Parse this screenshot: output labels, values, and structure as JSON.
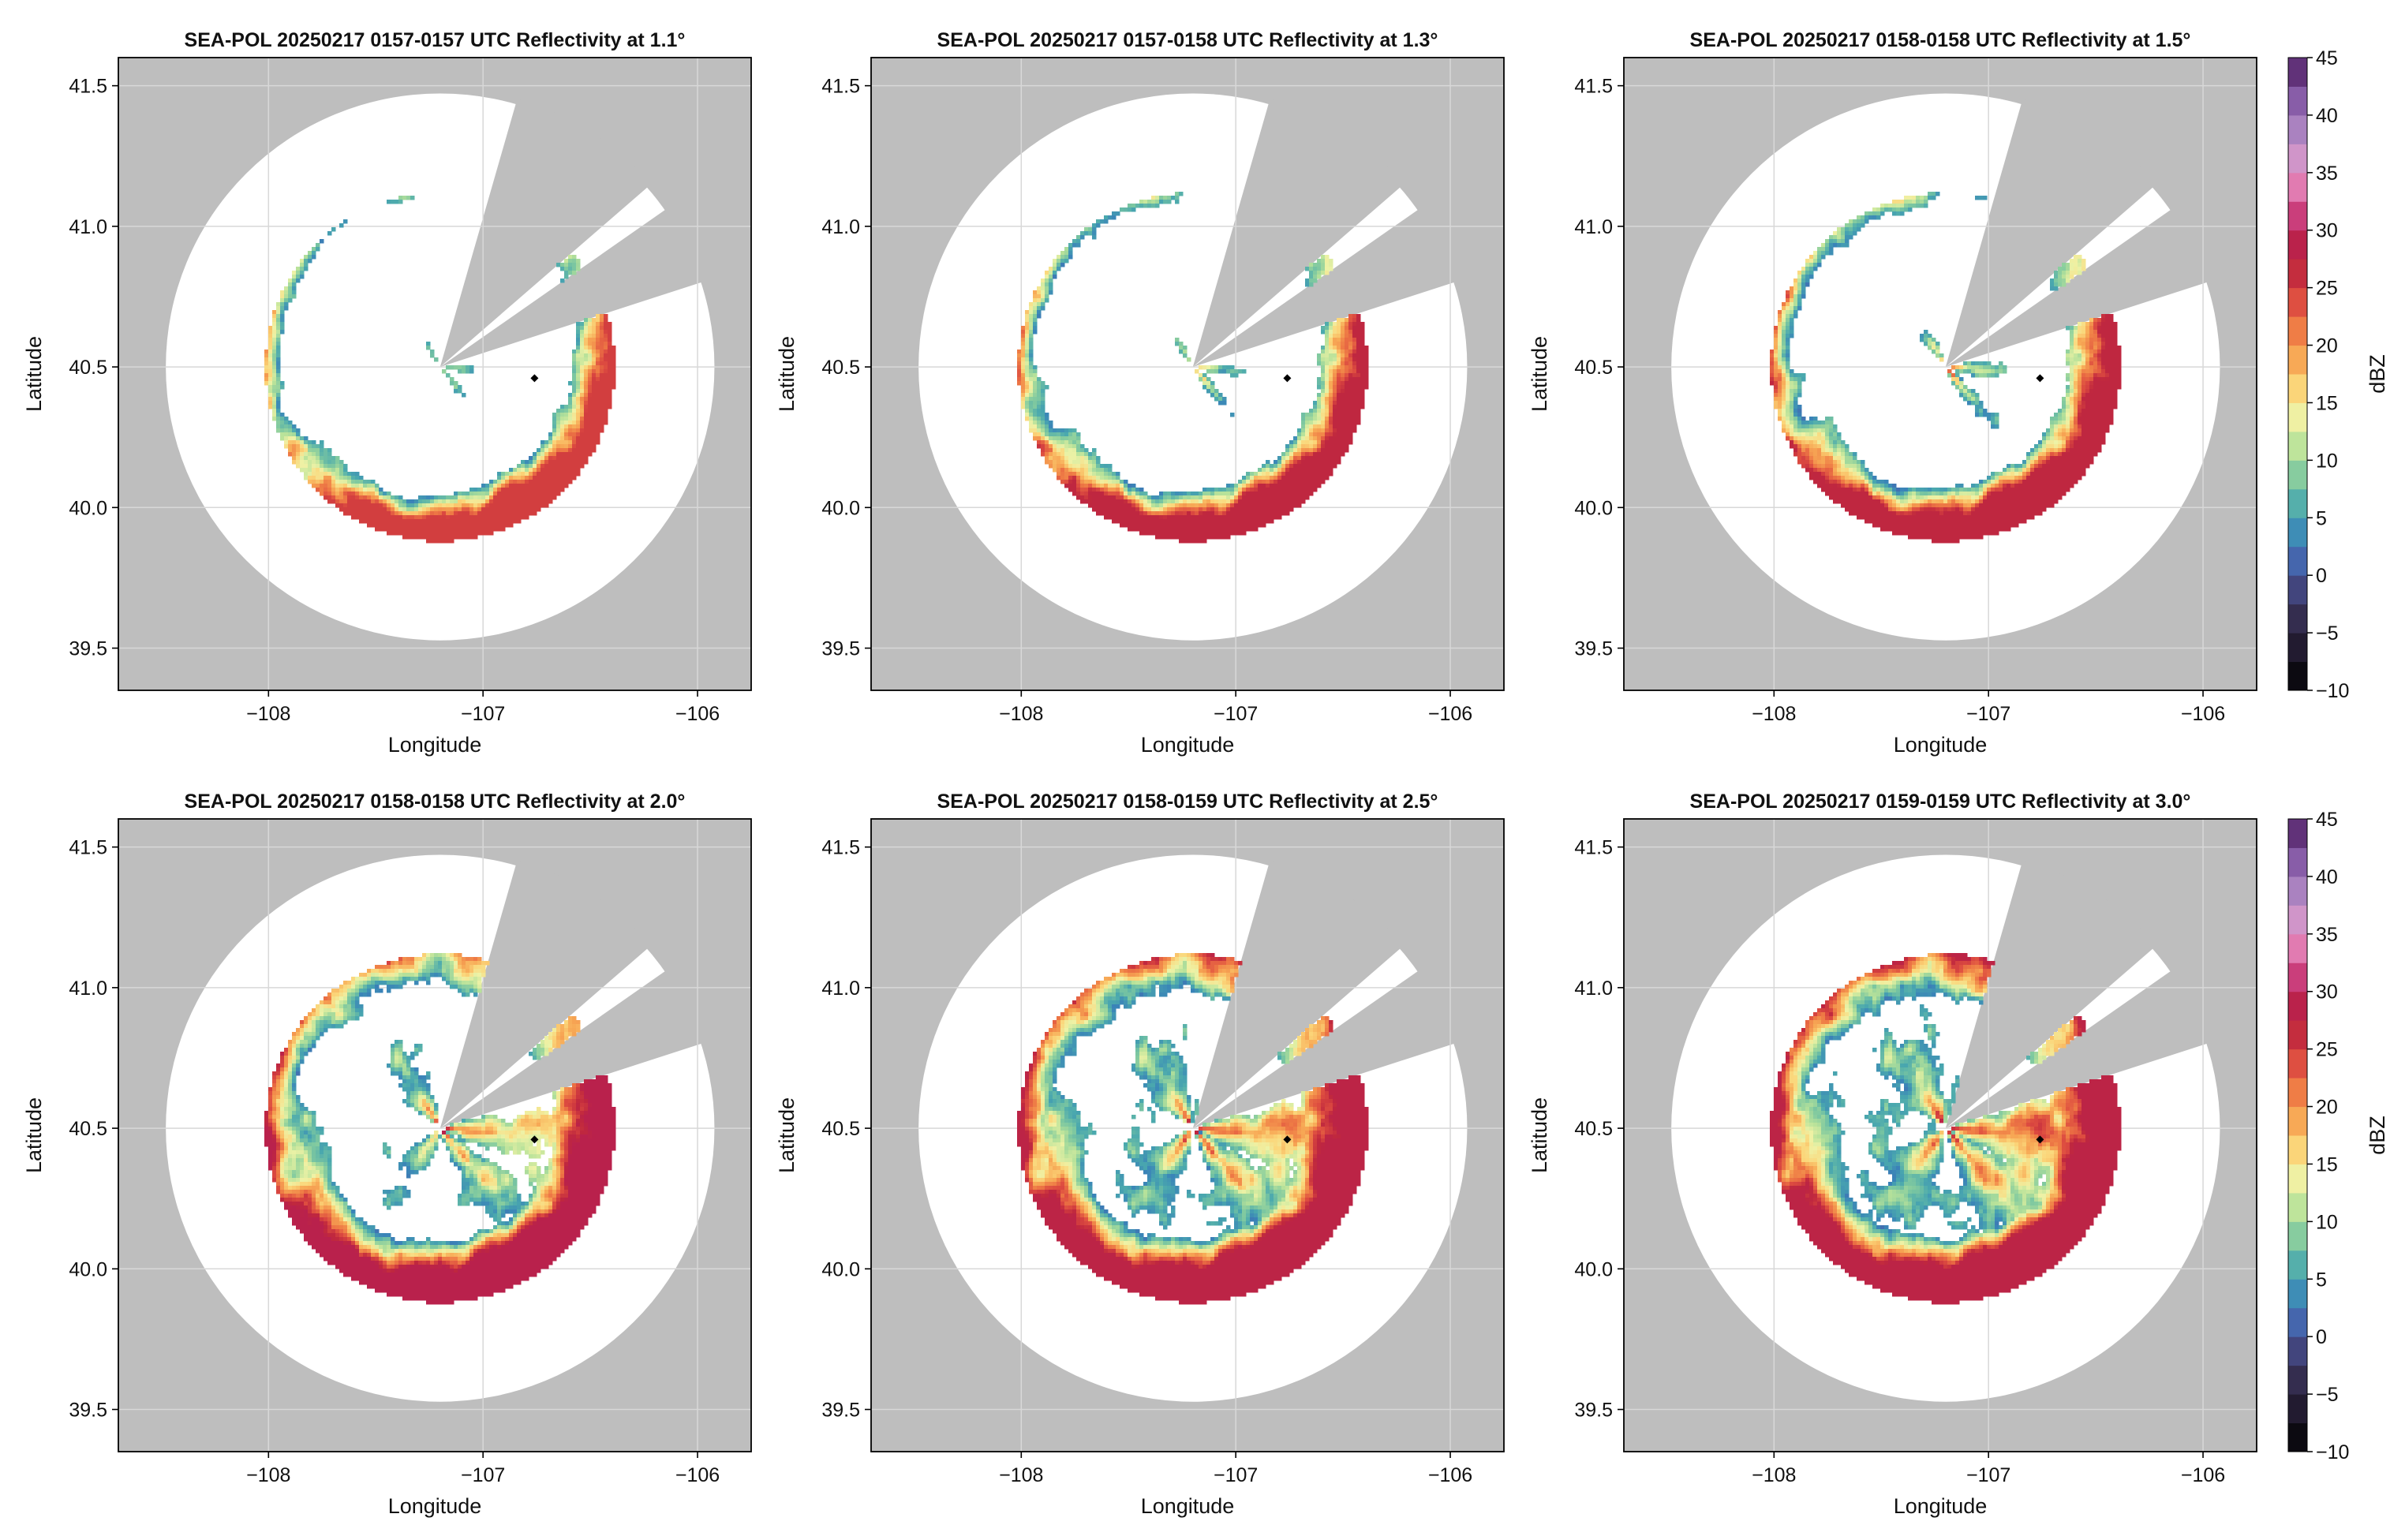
{
  "chart_data": {
    "type": "heatmap",
    "subtype": "radar-ppi-reflectivity",
    "layout": "2 rows x 3 columns",
    "xlabel": "Longitude",
    "ylabel": "Latitude",
    "xlim": [
      -108.7,
      -105.75
    ],
    "ylim": [
      39.35,
      41.6
    ],
    "xticks": [
      -108,
      -107,
      -106
    ],
    "xtick_labels": [
      "−108",
      "−107",
      "−106"
    ],
    "yticks": [
      39.5,
      40.0,
      40.5,
      41.0,
      41.5
    ],
    "ytick_labels": [
      "39.5",
      "40.0",
      "40.5",
      "41.0",
      "41.5"
    ],
    "grid": true,
    "radar_site": {
      "lon": -107.2,
      "lat": 40.5
    },
    "marker_point": {
      "lon": -106.76,
      "lat": 40.46
    },
    "blocked_sectors_deg_azimuth": [
      [
        16,
        49
      ],
      [
        55,
        72
      ]
    ],
    "max_range_deg": 1.43,
    "panels": [
      {
        "title": "SEA-POL 20250217 0157-0157 UTC Reflectivity at 1.1°",
        "elevation": 1.1,
        "coverage": 0.2,
        "peak_dbz": 25
      },
      {
        "title": "SEA-POL 20250217 0157-0158 UTC Reflectivity at 1.3°",
        "elevation": 1.3,
        "coverage": 0.35,
        "peak_dbz": 27
      },
      {
        "title": "SEA-POL 20250217 0158-0158 UTC Reflectivity at 1.5°",
        "elevation": 1.5,
        "coverage": 0.5,
        "peak_dbz": 27
      },
      {
        "title": "SEA-POL 20250217 0158-0158 UTC Reflectivity at 2.0°",
        "elevation": 2.0,
        "coverage": 0.8,
        "peak_dbz": 29
      },
      {
        "title": "SEA-POL 20250217 0158-0159 UTC Reflectivity at 2.5°",
        "elevation": 2.5,
        "coverage": 0.9,
        "peak_dbz": 28
      },
      {
        "title": "SEA-POL 20250217 0159-0159 UTC Reflectivity at 3.0°",
        "elevation": 3.0,
        "coverage": 0.95,
        "peak_dbz": 28
      }
    ],
    "colorbar": {
      "label": "dBZ",
      "min": -10,
      "max": 45,
      "ticks": [
        -10,
        -5,
        0,
        5,
        10,
        15,
        20,
        25,
        30,
        35,
        40,
        45
      ],
      "tick_labels": [
        "−10",
        "−5",
        "0",
        "5",
        "10",
        "15",
        "20",
        "25",
        "30",
        "35",
        "40",
        "45"
      ],
      "colors": [
        "#000000",
        "#1a1424",
        "#2d2440",
        "#3e3a66",
        "#4a5aa8",
        "#3a84b8",
        "#4aa8ae",
        "#7ec8a0",
        "#b8e29a",
        "#eef2a6",
        "#fbd67a",
        "#f7a855",
        "#ee7a45",
        "#dc4a40",
        "#c0283e",
        "#b8204e",
        "#d0488a",
        "#e890c2",
        "#c498cc",
        "#9a74b8",
        "#7a4c9c",
        "#4a1a5a"
      ]
    },
    "colors": {
      "blocked": "#bebebe",
      "no_data": "#ffffff",
      "grid": "#d8d8d8",
      "marker": "#000000"
    }
  }
}
